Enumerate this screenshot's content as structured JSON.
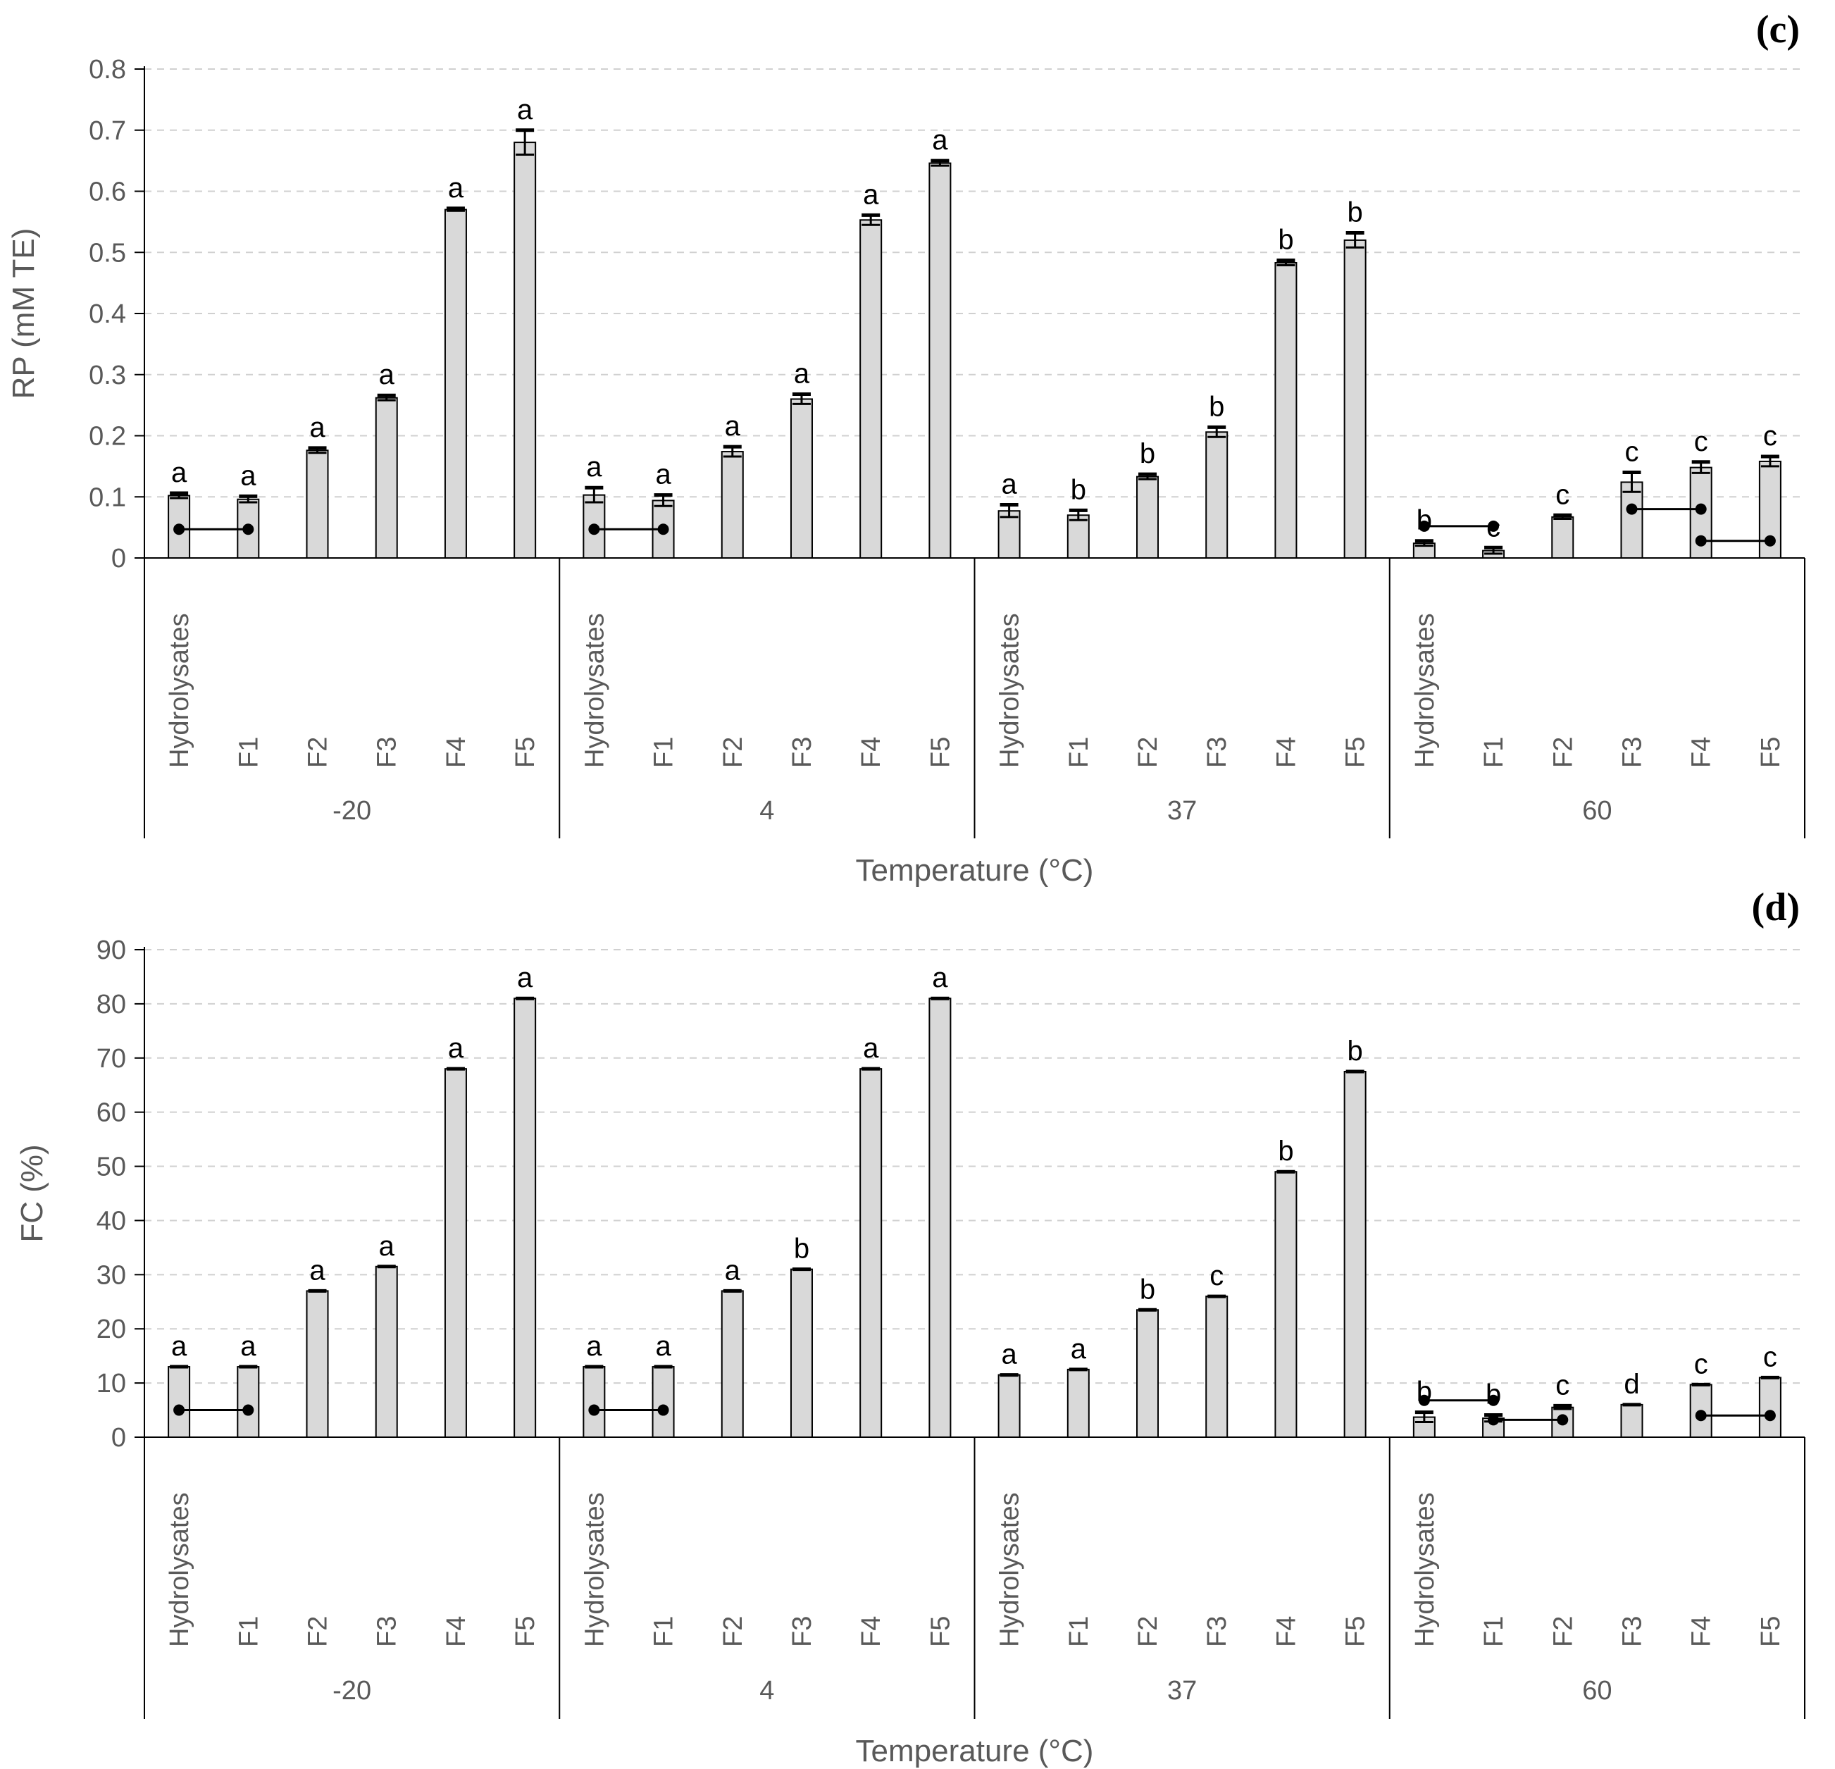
{
  "colors": {
    "bar_fill": "#d9d9d9",
    "bar_stroke": "#000000",
    "grid": "#d0d0d0",
    "axis": "#000000",
    "text": "#595959"
  },
  "chart_data": [
    {
      "type": "bar",
      "panel_label": "(c)",
      "ylabel": "RP (mM TE)",
      "xlabel": "Temperature (°C)",
      "ylim": [
        0,
        0.8
      ],
      "yticks": [
        "0",
        "0.1",
        "0.2",
        "0.3",
        "0.4",
        "0.5",
        "0.6",
        "0.7",
        "0.8"
      ],
      "grid": true,
      "groups": [
        {
          "label": "-20",
          "categories": [
            "Hydrolysates",
            "F1",
            "F2",
            "F3",
            "F4",
            "F5"
          ],
          "values": [
            0.102,
            0.096,
            0.176,
            0.262,
            0.57,
            0.68
          ],
          "errors": [
            0.004,
            0.005,
            0.004,
            0.004,
            0.002,
            0.02
          ],
          "letters": [
            "a",
            "a",
            "a",
            "a",
            "a",
            "a"
          ]
        },
        {
          "label": "4",
          "categories": [
            "Hydrolysates",
            "F1",
            "F2",
            "F3",
            "F4",
            "F5"
          ],
          "values": [
            0.103,
            0.094,
            0.174,
            0.26,
            0.553,
            0.646
          ],
          "errors": [
            0.012,
            0.009,
            0.008,
            0.008,
            0.008,
            0.004
          ],
          "letters": [
            "a",
            "a",
            "a",
            "a",
            "a",
            "a"
          ]
        },
        {
          "label": "37",
          "categories": [
            "Hydrolysates",
            "F1",
            "F2",
            "F3",
            "F4",
            "F5"
          ],
          "values": [
            0.077,
            0.07,
            0.133,
            0.206,
            0.483,
            0.52
          ],
          "errors": [
            0.01,
            0.008,
            0.004,
            0.008,
            0.004,
            0.012
          ],
          "letters": [
            "a",
            "b",
            "b",
            "b",
            "b",
            "b"
          ]
        },
        {
          "label": "60",
          "categories": [
            "Hydrolysates",
            "F1",
            "F2",
            "F3",
            "F4",
            "F5"
          ],
          "values": [
            0.024,
            0.012,
            0.067,
            0.124,
            0.148,
            0.158
          ],
          "errors": [
            0.004,
            0.005,
            0.003,
            0.016,
            0.009,
            0.008
          ],
          "letters": [
            "b",
            "c",
            "c",
            "c",
            "c",
            "c"
          ]
        }
      ],
      "connectors": [
        {
          "group": 0,
          "from": 0,
          "to": 1,
          "y": 0.047
        },
        {
          "group": 1,
          "from": 0,
          "to": 1,
          "y": 0.047
        },
        {
          "group": 3,
          "from": 0,
          "to": 1,
          "y": 0.052
        },
        {
          "group": 3,
          "from": 3,
          "to": 4,
          "y": 0.08
        },
        {
          "group": 3,
          "from": 4,
          "to": 5,
          "y": 0.028
        }
      ]
    },
    {
      "type": "bar",
      "panel_label": "(d)",
      "ylabel": "FC (%)",
      "xlabel": "Temperature (°C)",
      "ylim": [
        0,
        90
      ],
      "yticks": [
        "0",
        "10",
        "20",
        "30",
        "40",
        "50",
        "60",
        "70",
        "80",
        "90"
      ],
      "grid": true,
      "groups": [
        {
          "label": "-20",
          "categories": [
            "Hydrolysates",
            "F1",
            "F2",
            "F3",
            "F4",
            "F5"
          ],
          "values": [
            13,
            13,
            27,
            31.5,
            68,
            81
          ],
          "errors": [
            0,
            0,
            0,
            0,
            0,
            0
          ],
          "letters": [
            "a",
            "a",
            "a",
            "a",
            "a",
            "a"
          ]
        },
        {
          "label": "4",
          "categories": [
            "Hydrolysates",
            "F1",
            "F2",
            "F3",
            "F4",
            "F5"
          ],
          "values": [
            13,
            13,
            27,
            31,
            68,
            81
          ],
          "errors": [
            0,
            0,
            0,
            0,
            0,
            0
          ],
          "letters": [
            "a",
            "a",
            "a",
            "b",
            "a",
            "a"
          ]
        },
        {
          "label": "37",
          "categories": [
            "Hydrolysates",
            "F1",
            "F2",
            "F3",
            "F4",
            "F5"
          ],
          "values": [
            11.5,
            12.5,
            23.5,
            26,
            49,
            67.5
          ],
          "errors": [
            0,
            0,
            0,
            0,
            0,
            0
          ],
          "letters": [
            "a",
            "a",
            "b",
            "c",
            "b",
            "b"
          ]
        },
        {
          "label": "60",
          "categories": [
            "Hydrolysates",
            "F1",
            "F2",
            "F3",
            "F4",
            "F5"
          ],
          "values": [
            3.7,
            3.5,
            5.5,
            6,
            9.7,
            11
          ],
          "errors": [
            0.9,
            0.6,
            0.3,
            0,
            0,
            0
          ],
          "letters": [
            "b",
            "b",
            "c",
            "d",
            "c",
            "c"
          ]
        }
      ],
      "connectors": [
        {
          "group": 0,
          "from": 0,
          "to": 1,
          "y": 5
        },
        {
          "group": 1,
          "from": 0,
          "to": 1,
          "y": 5
        },
        {
          "group": 3,
          "from": 0,
          "to": 1,
          "y": 6.8
        },
        {
          "group": 3,
          "from": 1,
          "to": 2,
          "y": 3.2
        },
        {
          "group": 3,
          "from": 4,
          "to": 5,
          "y": 4
        }
      ]
    }
  ]
}
